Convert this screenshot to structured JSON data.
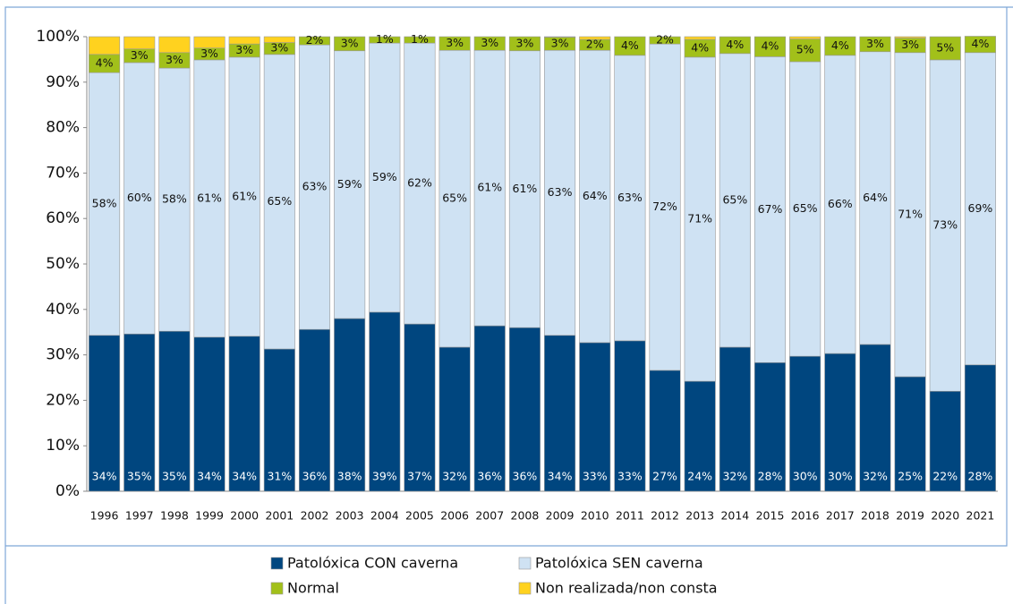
{
  "chart_data": {
    "type": "stacked_bar_100",
    "categories": [
      "1996",
      "1997",
      "1998",
      "1999",
      "2000",
      "2001",
      "2002",
      "2003",
      "2004",
      "2005",
      "2006",
      "2007",
      "2008",
      "2009",
      "2010",
      "2011",
      "2012",
      "2013",
      "2014",
      "2015",
      "2016",
      "2017",
      "2018",
      "2019",
      "2020",
      "2021"
    ],
    "series": [
      {
        "name": "Patolóxica CON caverna",
        "color": "#00467f",
        "values": [
          34.3,
          34.6,
          35.2,
          33.9,
          34.1,
          31.3,
          35.6,
          38.0,
          39.4,
          36.8,
          31.7,
          36.4,
          36.0,
          34.3,
          32.7,
          33.1,
          26.6,
          24.2,
          31.7,
          28.3,
          29.7,
          30.3,
          32.3,
          25.2,
          22.0,
          27.8
        ],
        "value_labels": [
          "34%",
          "35%",
          "35%",
          "34%",
          "34%",
          "31%",
          "36%",
          "38%",
          "39%",
          "37%",
          "32%",
          "36%",
          "36%",
          "34%",
          "33%",
          "33%",
          "27%",
          "24%",
          "32%",
          "28%",
          "30%",
          "30%",
          "32%",
          "25%",
          "22%",
          "28%"
        ]
      },
      {
        "name": "Patolóxica SEN caverna",
        "color": "#cfe2f3",
        "values": [
          57.8,
          59.7,
          57.9,
          61.0,
          61.4,
          64.8,
          62.6,
          58.9,
          59.2,
          61.8,
          65.3,
          60.6,
          60.9,
          62.7,
          64.3,
          62.8,
          71.8,
          71.3,
          64.6,
          67.3,
          64.8,
          65.6,
          64.4,
          71.3,
          72.9,
          68.7
        ],
        "value_labels": [
          "58%",
          "60%",
          "58%",
          "61%",
          "61%",
          "65%",
          "63%",
          "59%",
          "59%",
          "62%",
          "65%",
          "61%",
          "61%",
          "63%",
          "64%",
          "63%",
          "72%",
          "71%",
          "65%",
          "67%",
          "65%",
          "66%",
          "64%",
          "71%",
          "73%",
          "69%"
        ]
      },
      {
        "name": "Normal",
        "color": "#a2c01a",
        "values": [
          4.0,
          3.0,
          3.4,
          2.6,
          2.9,
          2.6,
          1.8,
          3.1,
          1.4,
          1.4,
          3.0,
          3.0,
          3.1,
          2.9,
          2.4,
          4.1,
          1.6,
          3.9,
          3.7,
          4.4,
          5.0,
          4.1,
          3.3,
          3.2,
          5.1,
          3.6
        ],
        "value_labels": [
          "4%",
          "3%",
          "3%",
          "3%",
          "3%",
          "3%",
          "2%",
          "3%",
          "1%",
          "1%",
          "3%",
          "3%",
          "3%",
          "3%",
          "2%",
          "4%",
          "2%",
          "4%",
          "4%",
          "4%",
          "5%",
          "4%",
          "3%",
          "3%",
          "5%",
          "4%"
        ]
      },
      {
        "name": "Non realizada/non consta",
        "color": "#ffd21f",
        "values": [
          3.9,
          2.7,
          3.5,
          2.5,
          1.6,
          1.3,
          0,
          0,
          0,
          0,
          0,
          0,
          0,
          0.1,
          0.6,
          0,
          0,
          0.6,
          0,
          0,
          0.5,
          0,
          0,
          0.3,
          0,
          0
        ]
      }
    ],
    "ylim": [
      0,
      100
    ],
    "yticks": [
      {
        "value": 0,
        "label": "0%"
      },
      {
        "value": 10,
        "label": "10%"
      },
      {
        "value": 20,
        "label": "20%"
      },
      {
        "value": 30,
        "label": "30%"
      },
      {
        "value": 40,
        "label": "40%"
      },
      {
        "value": 50,
        "label": "50%"
      },
      {
        "value": 60,
        "label": "60%"
      },
      {
        "value": 70,
        "label": "70%"
      },
      {
        "value": 80,
        "label": "80%"
      },
      {
        "value": 90,
        "label": "90%"
      },
      {
        "value": 100,
        "label": "100%"
      }
    ]
  }
}
